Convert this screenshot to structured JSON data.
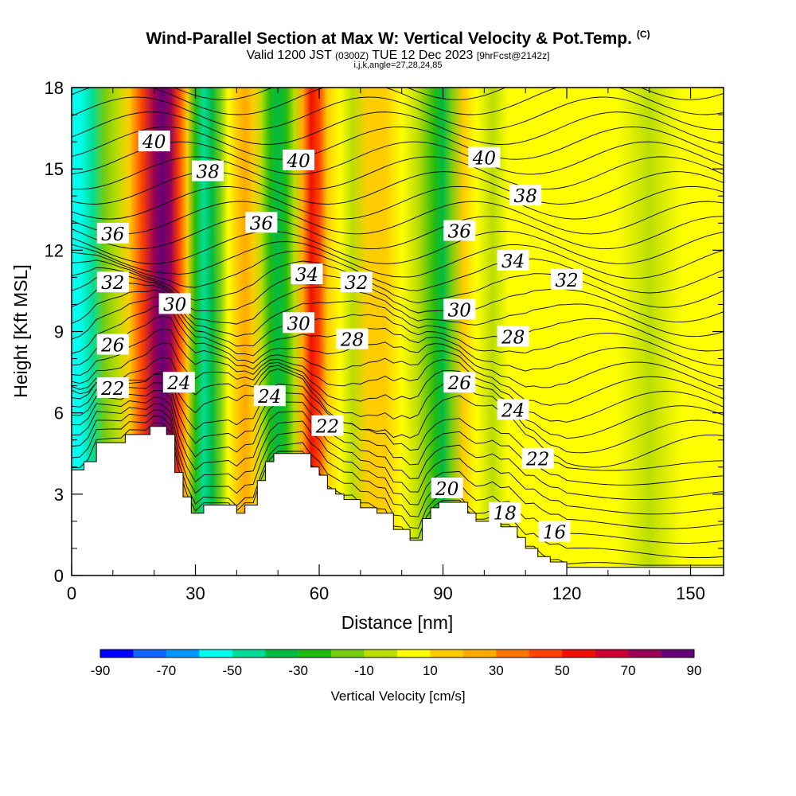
{
  "header": {
    "title": "Wind-Parallel Section at Max W: Vertical Velocity & Pot.Temp.",
    "copyright": "(C)",
    "valid_prefix": "Valid 1200 JST",
    "valid_utc": "(0300Z)",
    "valid_date": "TUE 12 Dec 2023",
    "forecast": "[9hrFcst@2142z]",
    "subtitle": "i,j,k,angle=27,28,24,85"
  },
  "colors": {
    "bins": [
      "#0000ff",
      "#1166ff",
      "#0099ff",
      "#00ffee",
      "#00dd99",
      "#00bb44",
      "#22bb11",
      "#77cc11",
      "#bbdd00",
      "#ffff00",
      "#ffcc00",
      "#ffaa00",
      "#ff7700",
      "#ff4400",
      "#ee1100",
      "#cc0033",
      "#990055",
      "#660077"
    ]
  },
  "chart_data": {
    "type": "heatmap",
    "xlabel": "Distance [nm]",
    "ylabel": "Height [Kft MSL]",
    "xlim": [
      0,
      158
    ],
    "ylim": [
      0,
      18
    ],
    "xticks": [
      0,
      30,
      60,
      90,
      120,
      150
    ],
    "yticks": [
      0,
      3,
      6,
      9,
      12,
      15,
      18
    ],
    "colorbar": {
      "title": "Vertical Velocity [cm/s]",
      "ticks": [
        -90,
        -70,
        -50,
        -30,
        -10,
        10,
        30,
        50,
        70,
        90
      ],
      "min": -90,
      "max": 90
    },
    "vertical_velocity_columns": [
      {
        "x": 2,
        "w": -52
      },
      {
        "x": 5,
        "w": -45
      },
      {
        "x": 8,
        "w": -20
      },
      {
        "x": 11,
        "w": -10
      },
      {
        "x": 14,
        "w": 15
      },
      {
        "x": 17,
        "w": 45
      },
      {
        "x": 20,
        "w": 70
      },
      {
        "x": 22,
        "w": 88
      },
      {
        "x": 24,
        "w": 75
      },
      {
        "x": 26,
        "w": 45
      },
      {
        "x": 28,
        "w": 10
      },
      {
        "x": 30,
        "w": -25
      },
      {
        "x": 32,
        "w": -42
      },
      {
        "x": 34,
        "w": -35
      },
      {
        "x": 36,
        "w": -15
      },
      {
        "x": 38,
        "w": 5
      },
      {
        "x": 40,
        "w": 15
      },
      {
        "x": 42,
        "w": 20
      },
      {
        "x": 44,
        "w": 10
      },
      {
        "x": 46,
        "w": -5
      },
      {
        "x": 48,
        "w": -22
      },
      {
        "x": 50,
        "w": -38
      },
      {
        "x": 52,
        "w": -28
      },
      {
        "x": 54,
        "w": -10
      },
      {
        "x": 56,
        "w": 25
      },
      {
        "x": 58,
        "w": 55
      },
      {
        "x": 60,
        "w": 40
      },
      {
        "x": 62,
        "w": 15
      },
      {
        "x": 65,
        "w": 5
      },
      {
        "x": 68,
        "w": -5
      },
      {
        "x": 72,
        "w": 10
      },
      {
        "x": 76,
        "w": 15
      },
      {
        "x": 80,
        "w": 5
      },
      {
        "x": 84,
        "w": -5
      },
      {
        "x": 88,
        "w": -25
      },
      {
        "x": 90,
        "w": -40
      },
      {
        "x": 92,
        "w": -20
      },
      {
        "x": 95,
        "w": 10
      },
      {
        "x": 98,
        "w": 5
      },
      {
        "x": 102,
        "w": -5
      },
      {
        "x": 106,
        "w": 5
      },
      {
        "x": 112,
        "w": 8
      },
      {
        "x": 118,
        "w": 5
      },
      {
        "x": 124,
        "w": 3
      },
      {
        "x": 132,
        "w": 5
      },
      {
        "x": 140,
        "w": -2
      },
      {
        "x": 148,
        "w": 5
      },
      {
        "x": 156,
        "w": 8
      }
    ],
    "terrain": [
      [
        0,
        3.9
      ],
      [
        3,
        4.2
      ],
      [
        6,
        4.9
      ],
      [
        9,
        4.9
      ],
      [
        13,
        5.2
      ],
      [
        19,
        5.5
      ],
      [
        23,
        5.2
      ],
      [
        25,
        3.8
      ],
      [
        27,
        2.9
      ],
      [
        29,
        2.3
      ],
      [
        32,
        2.6
      ],
      [
        38,
        2.6
      ],
      [
        40,
        2.3
      ],
      [
        42,
        2.6
      ],
      [
        45,
        3.5
      ],
      [
        47,
        4.2
      ],
      [
        49,
        4.5
      ],
      [
        56,
        4.5
      ],
      [
        58,
        4.0
      ],
      [
        60,
        3.7
      ],
      [
        62,
        3.2
      ],
      [
        64,
        3.0
      ],
      [
        66,
        2.8
      ],
      [
        70,
        2.5
      ],
      [
        74,
        2.3
      ],
      [
        78,
        1.7
      ],
      [
        82,
        1.3
      ],
      [
        85,
        2.1
      ],
      [
        87,
        2.5
      ],
      [
        89,
        2.7
      ],
      [
        93,
        2.7
      ],
      [
        96,
        2.3
      ],
      [
        98,
        2.0
      ],
      [
        102,
        2.1
      ],
      [
        104,
        1.8
      ],
      [
        108,
        1.4
      ],
      [
        110,
        1.0
      ],
      [
        113,
        0.7
      ],
      [
        116,
        0.5
      ],
      [
        120,
        0.3
      ],
      [
        130,
        0.3
      ],
      [
        158,
        0.3
      ]
    ],
    "potential_temperature_labels": [
      {
        "x": 20,
        "y": 16.0,
        "text": "40"
      },
      {
        "x": 33,
        "y": 14.9,
        "text": "38"
      },
      {
        "x": 55,
        "y": 15.3,
        "text": "40"
      },
      {
        "x": 100,
        "y": 15.4,
        "text": "40"
      },
      {
        "x": 110,
        "y": 14.0,
        "text": "38"
      },
      {
        "x": 10,
        "y": 12.6,
        "text": "36"
      },
      {
        "x": 46,
        "y": 13.0,
        "text": "36"
      },
      {
        "x": 94,
        "y": 12.7,
        "text": "36"
      },
      {
        "x": 107,
        "y": 11.6,
        "text": "34"
      },
      {
        "x": 57,
        "y": 11.1,
        "text": "34"
      },
      {
        "x": 10,
        "y": 10.8,
        "text": "32"
      },
      {
        "x": 69,
        "y": 10.8,
        "text": "32"
      },
      {
        "x": 120,
        "y": 10.9,
        "text": "32"
      },
      {
        "x": 25,
        "y": 10.0,
        "text": "30"
      },
      {
        "x": 55,
        "y": 9.3,
        "text": "30"
      },
      {
        "x": 94,
        "y": 9.8,
        "text": "30"
      },
      {
        "x": 68,
        "y": 8.7,
        "text": "28"
      },
      {
        "x": 107,
        "y": 8.8,
        "text": "28"
      },
      {
        "x": 10,
        "y": 8.5,
        "text": "26"
      },
      {
        "x": 94,
        "y": 7.1,
        "text": "26"
      },
      {
        "x": 10,
        "y": 6.9,
        "text": "22"
      },
      {
        "x": 26,
        "y": 7.1,
        "text": "24"
      },
      {
        "x": 48,
        "y": 6.6,
        "text": "24"
      },
      {
        "x": 107,
        "y": 6.1,
        "text": "24"
      },
      {
        "x": 62,
        "y": 5.5,
        "text": "22"
      },
      {
        "x": 113,
        "y": 4.3,
        "text": "22"
      },
      {
        "x": 91,
        "y": 3.2,
        "text": "20"
      },
      {
        "x": 105,
        "y": 2.3,
        "text": "18"
      },
      {
        "x": 117,
        "y": 1.6,
        "text": "16"
      }
    ]
  }
}
